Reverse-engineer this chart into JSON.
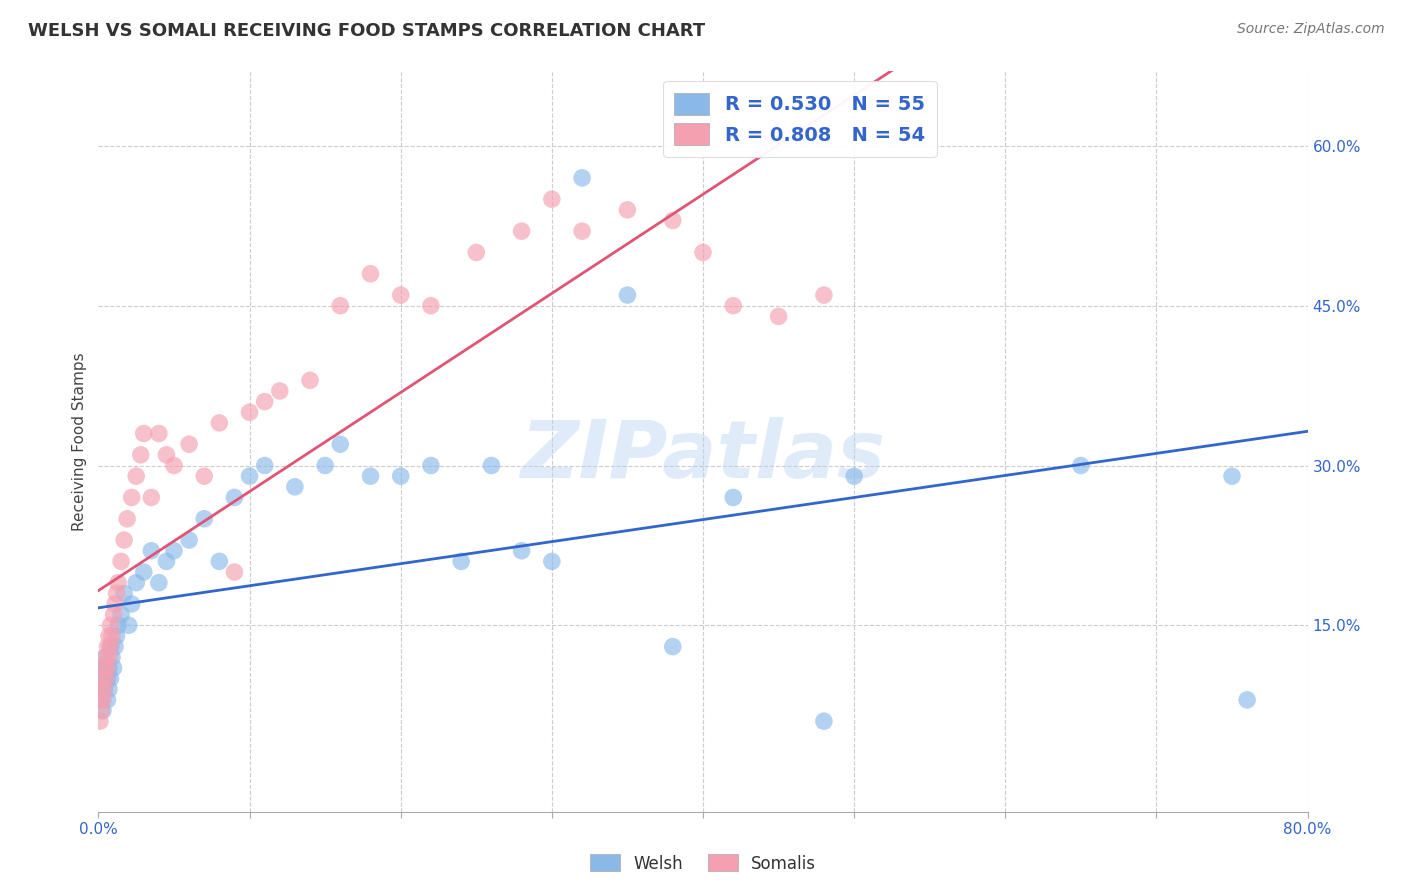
{
  "title": "WELSH VS SOMALI RECEIVING FOOD STAMPS CORRELATION CHART",
  "source": "Source: ZipAtlas.com",
  "ylabel": "Receiving Food Stamps",
  "watermark": "ZIPatlas",
  "xlim": [
    0.0,
    0.8
  ],
  "ylim": [
    -0.025,
    0.67
  ],
  "ytick_positions": [
    0.15,
    0.3,
    0.45,
    0.6
  ],
  "ytick_labels": [
    "15.0%",
    "30.0%",
    "45.0%",
    "60.0%"
  ],
  "welsh_color": "#8ab9e8",
  "somali_color": "#f4a0b0",
  "welsh_line_color": "#3366cc",
  "somali_line_color": "#e05575",
  "welsh_R": 0.53,
  "welsh_N": 55,
  "somali_R": 0.808,
  "somali_N": 54,
  "grid_color": "#cccccc",
  "background_color": "#ffffff",
  "welsh_scatter_x": [
    0.001,
    0.002,
    0.002,
    0.003,
    0.003,
    0.004,
    0.004,
    0.005,
    0.005,
    0.006,
    0.006,
    0.007,
    0.007,
    0.008,
    0.008,
    0.009,
    0.01,
    0.011,
    0.012,
    0.013,
    0.015,
    0.017,
    0.02,
    0.022,
    0.025,
    0.03,
    0.035,
    0.04,
    0.045,
    0.05,
    0.06,
    0.07,
    0.08,
    0.09,
    0.1,
    0.11,
    0.13,
    0.15,
    0.16,
    0.18,
    0.2,
    0.22,
    0.24,
    0.26,
    0.28,
    0.3,
    0.32,
    0.35,
    0.38,
    0.42,
    0.48,
    0.5,
    0.65,
    0.75,
    0.76
  ],
  "welsh_scatter_y": [
    0.09,
    0.1,
    0.08,
    0.11,
    0.07,
    0.12,
    0.09,
    0.1,
    0.11,
    0.08,
    0.1,
    0.09,
    0.11,
    0.13,
    0.1,
    0.12,
    0.11,
    0.13,
    0.14,
    0.15,
    0.16,
    0.18,
    0.15,
    0.17,
    0.19,
    0.2,
    0.22,
    0.19,
    0.21,
    0.22,
    0.23,
    0.25,
    0.21,
    0.27,
    0.29,
    0.3,
    0.28,
    0.3,
    0.32,
    0.29,
    0.29,
    0.3,
    0.21,
    0.3,
    0.22,
    0.21,
    0.57,
    0.46,
    0.13,
    0.27,
    0.06,
    0.29,
    0.3,
    0.29,
    0.08
  ],
  "somali_scatter_x": [
    0.001,
    0.001,
    0.002,
    0.002,
    0.003,
    0.003,
    0.004,
    0.004,
    0.005,
    0.005,
    0.006,
    0.006,
    0.007,
    0.007,
    0.008,
    0.008,
    0.009,
    0.01,
    0.011,
    0.012,
    0.013,
    0.015,
    0.017,
    0.019,
    0.022,
    0.025,
    0.028,
    0.03,
    0.035,
    0.04,
    0.045,
    0.05,
    0.06,
    0.07,
    0.08,
    0.09,
    0.1,
    0.11,
    0.12,
    0.14,
    0.16,
    0.18,
    0.2,
    0.22,
    0.25,
    0.28,
    0.3,
    0.32,
    0.35,
    0.38,
    0.4,
    0.42,
    0.45,
    0.48
  ],
  "somali_scatter_y": [
    0.06,
    0.08,
    0.07,
    0.09,
    0.08,
    0.1,
    0.09,
    0.11,
    0.1,
    0.12,
    0.11,
    0.13,
    0.12,
    0.14,
    0.13,
    0.15,
    0.14,
    0.16,
    0.17,
    0.18,
    0.19,
    0.21,
    0.23,
    0.25,
    0.27,
    0.29,
    0.31,
    0.33,
    0.27,
    0.33,
    0.31,
    0.3,
    0.32,
    0.29,
    0.34,
    0.2,
    0.35,
    0.36,
    0.37,
    0.38,
    0.45,
    0.48,
    0.46,
    0.45,
    0.5,
    0.52,
    0.55,
    0.52,
    0.54,
    0.53,
    0.5,
    0.45,
    0.44,
    0.46
  ]
}
